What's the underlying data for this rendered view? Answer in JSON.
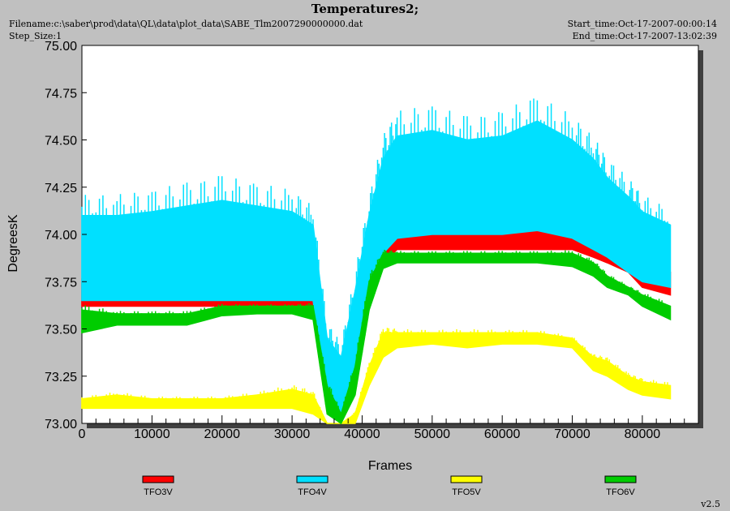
{
  "header": {
    "title": "Temperatures2;",
    "filename": "Filename:c:\\saber\\prod\\data\\QL\\data\\plot_data\\SABE_Tlm2007290000000.dat",
    "step_size": "Step_Size:1",
    "start_time": "Start_time:Oct-17-2007-00:00:14",
    "end_time": "End_time:Oct-17-2007-13:02:39",
    "version": "v2.5"
  },
  "chart_data": {
    "type": "line",
    "xlabel": "Frames",
    "ylabel": "DegreesK",
    "xlim": [
      0,
      88000
    ],
    "ylim": [
      73.0,
      75.0
    ],
    "x_ticks": [
      0,
      10000,
      20000,
      30000,
      40000,
      50000,
      60000,
      70000,
      80000
    ],
    "y_ticks": [
      73.0,
      73.25,
      73.5,
      73.75,
      74.0,
      74.25,
      74.5,
      74.75,
      75.0
    ],
    "y_tick_labels": [
      "73.00",
      "73.25",
      "73.50",
      "73.75",
      "74.00",
      "74.25",
      "74.50",
      "74.75",
      "75.00"
    ],
    "legend_position": "bottom",
    "series": [
      {
        "name": "TFO3V",
        "color": "#ff0000",
        "x": [
          0,
          5000,
          10000,
          15000,
          20000,
          25000,
          30000,
          33000,
          35000,
          37000,
          39000,
          41000,
          43000,
          45000,
          50000,
          55000,
          60000,
          65000,
          70000,
          73000,
          75000,
          78000,
          80000,
          84000
        ],
        "low": [
          73.62,
          73.62,
          73.62,
          73.62,
          73.62,
          73.62,
          73.62,
          73.62,
          73.2,
          73.05,
          73.25,
          73.65,
          73.85,
          73.92,
          73.92,
          73.92,
          73.92,
          73.92,
          73.92,
          73.88,
          73.85,
          73.8,
          73.72,
          73.68
        ],
        "high": [
          73.75,
          73.78,
          73.8,
          73.82,
          73.8,
          73.78,
          73.8,
          73.72,
          73.3,
          73.15,
          73.4,
          73.8,
          74.05,
          74.08,
          74.1,
          74.1,
          74.1,
          74.12,
          74.1,
          74.0,
          73.98,
          73.92,
          73.85,
          73.8
        ]
      },
      {
        "name": "TFO4V",
        "color": "#00e0ff",
        "x": [
          0,
          5000,
          10000,
          15000,
          20000,
          25000,
          30000,
          33000,
          35000,
          37000,
          39000,
          41000,
          43000,
          45000,
          50000,
          55000,
          60000,
          65000,
          70000,
          73000,
          75000,
          78000,
          80000,
          84000
        ],
        "low": [
          73.65,
          73.65,
          73.65,
          73.65,
          73.65,
          73.65,
          73.65,
          73.65,
          73.1,
          73.05,
          73.3,
          73.7,
          73.9,
          73.98,
          74.0,
          74.0,
          74.0,
          74.02,
          73.98,
          73.92,
          73.88,
          73.8,
          73.75,
          73.72
        ],
        "high": [
          74.1,
          74.1,
          74.12,
          74.15,
          74.18,
          74.15,
          74.12,
          74.05,
          73.45,
          73.35,
          73.7,
          74.1,
          74.4,
          74.52,
          74.55,
          74.5,
          74.52,
          74.6,
          74.5,
          74.4,
          74.3,
          74.2,
          74.12,
          74.05
        ]
      },
      {
        "name": "TFO5V",
        "color": "#ffff00",
        "x": [
          0,
          5000,
          10000,
          15000,
          20000,
          25000,
          30000,
          33000,
          35000,
          37000,
          39000,
          41000,
          43000,
          45000,
          50000,
          55000,
          60000,
          65000,
          70000,
          73000,
          75000,
          78000,
          80000,
          84000
        ],
        "low": [
          73.08,
          73.08,
          73.08,
          73.08,
          73.08,
          73.08,
          73.08,
          73.05,
          73.0,
          73.0,
          73.0,
          73.2,
          73.35,
          73.4,
          73.42,
          73.4,
          73.42,
          73.42,
          73.4,
          73.28,
          73.25,
          73.18,
          73.15,
          73.13
        ],
        "high": [
          73.13,
          73.15,
          73.13,
          73.13,
          73.13,
          73.15,
          73.18,
          73.15,
          73.0,
          73.0,
          73.05,
          73.3,
          73.48,
          73.48,
          73.48,
          73.48,
          73.48,
          73.48,
          73.45,
          73.35,
          73.33,
          73.25,
          73.22,
          73.2
        ]
      },
      {
        "name": "TFO6V",
        "color": "#00cc00",
        "x": [
          0,
          5000,
          10000,
          15000,
          20000,
          25000,
          30000,
          33000,
          35000,
          37000,
          39000,
          41000,
          43000,
          45000,
          50000,
          55000,
          60000,
          65000,
          70000,
          73000,
          75000,
          78000,
          80000,
          84000
        ],
        "low": [
          73.48,
          73.52,
          73.52,
          73.52,
          73.57,
          73.58,
          73.58,
          73.55,
          73.05,
          73.0,
          73.15,
          73.6,
          73.82,
          73.85,
          73.85,
          73.85,
          73.85,
          73.85,
          73.83,
          73.78,
          73.72,
          73.68,
          73.62,
          73.55
        ],
        "high": [
          73.6,
          73.58,
          73.58,
          73.58,
          73.62,
          73.62,
          73.62,
          73.62,
          73.2,
          73.05,
          73.3,
          73.75,
          73.9,
          73.9,
          73.9,
          73.9,
          73.9,
          73.9,
          73.9,
          73.85,
          73.78,
          73.72,
          73.68,
          73.62
        ]
      }
    ]
  }
}
